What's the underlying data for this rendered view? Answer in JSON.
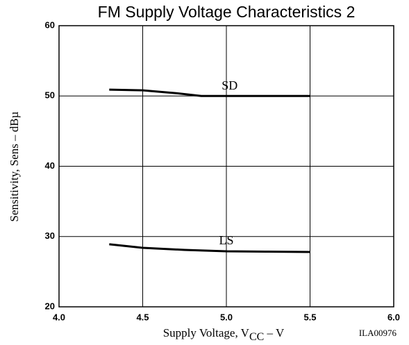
{
  "chart_data": {
    "type": "line",
    "title": "FM Supply Voltage Characteristics 2",
    "ylabel": "Sensitivity, Sens – dBµ",
    "xlabel": {
      "main": "Supply Voltage, V",
      "sub": "CC",
      "tail": " – V"
    },
    "code": "ILA00976",
    "xlim": [
      4.0,
      6.0
    ],
    "xticks": [
      {
        "value": 4.0,
        "label": "4.0"
      },
      4.5,
      {
        "value": 5.0,
        "label": "5.0"
      },
      5.5,
      {
        "value": 6.0,
        "label": "6.0"
      }
    ],
    "ylim": [
      20,
      60
    ],
    "yticks": [
      20,
      30,
      40,
      50,
      60
    ],
    "grid": true,
    "series": [
      {
        "name": "SD",
        "color": "#000000",
        "x": [
          4.3,
          4.5,
          4.7,
          4.85,
          5.0,
          5.5
        ],
        "values": [
          50.9,
          50.8,
          50.4,
          50.0,
          50.0,
          50.0
        ]
      },
      {
        "name": "LS",
        "color": "#000000",
        "x": [
          4.3,
          4.5,
          4.75,
          5.0,
          5.25,
          5.5
        ],
        "values": [
          28.9,
          28.4,
          28.1,
          27.9,
          27.85,
          27.8
        ]
      }
    ]
  }
}
